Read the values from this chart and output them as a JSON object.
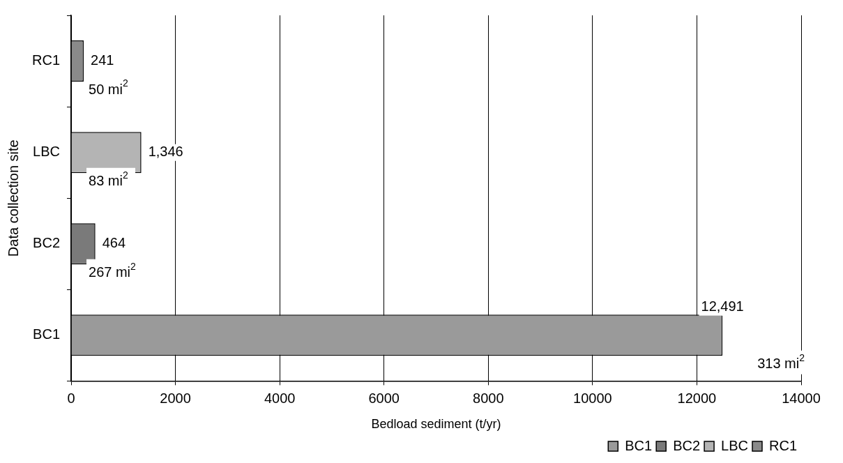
{
  "chart_data": {
    "type": "bar",
    "orientation": "horizontal",
    "xlabel": "Bedload sediment (t/yr)",
    "ylabel": "Data collection site",
    "categories": [
      "RC1",
      "LBC",
      "BC2",
      "BC1"
    ],
    "series": [
      {
        "name": "BC1",
        "color": "#9a9a9a",
        "values": [
          null,
          null,
          null,
          12491
        ],
        "value_labels": [
          null,
          null,
          null,
          "12,491"
        ]
      },
      {
        "name": "BC2",
        "color": "#7a7a7a",
        "values": [
          null,
          null,
          464,
          null
        ],
        "value_labels": [
          null,
          null,
          "464",
          null
        ]
      },
      {
        "name": "LBC",
        "color": "#b4b4b4",
        "values": [
          null,
          1346,
          null,
          null
        ],
        "value_labels": [
          null,
          "1,346",
          null,
          null
        ]
      },
      {
        "name": "RC1",
        "color": "#8a8a8a",
        "values": [
          241,
          null,
          null,
          null
        ],
        "value_labels": [
          "241",
          null,
          null,
          null
        ]
      }
    ],
    "xlim": [
      0,
      14000
    ],
    "xticks": [
      0,
      2000,
      4000,
      6000,
      8000,
      10000,
      12000,
      14000
    ],
    "annotations": [
      "50 mi$^{2}$",
      "83 mi$^{2}$",
      "267 mi$^{2}$",
      "313 mi$^{2}$"
    ],
    "grid": "x",
    "legend": "bottom right"
  }
}
